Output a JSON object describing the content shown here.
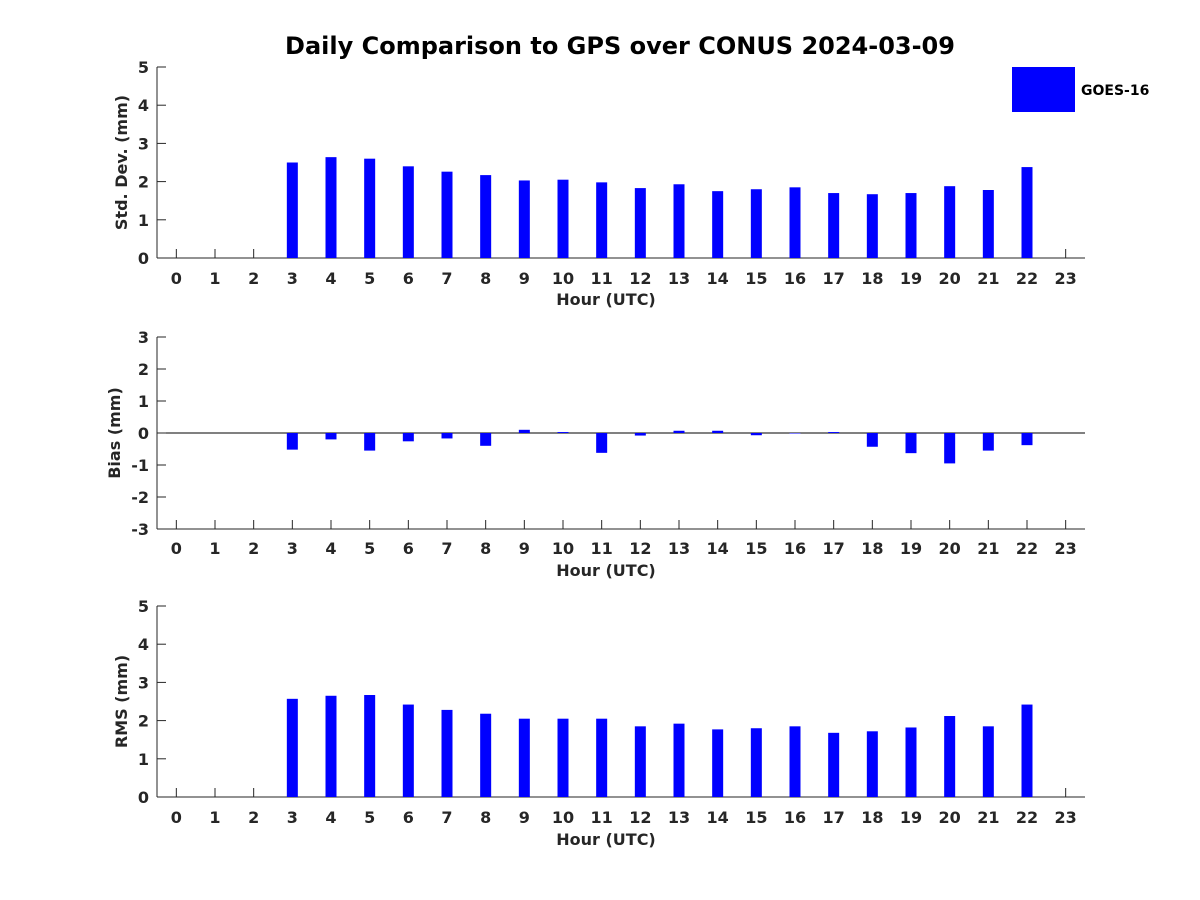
{
  "colors": {
    "bar": "#0000ff",
    "axis": "#262626",
    "background": "#ffffff"
  },
  "legend": {
    "label": "GOES-16",
    "location": "top-right"
  },
  "chart_data": [
    {
      "type": "bar",
      "title": "Daily Comparison to GPS over CONUS 2024-03-09",
      "xlabel": "Hour (UTC)",
      "ylabel": "Std. Dev. (mm)",
      "xlim": [
        -0.5,
        23.5
      ],
      "ylim": [
        0,
        5
      ],
      "yticks": [
        0,
        1,
        2,
        3,
        4,
        5
      ],
      "categories": [
        0,
        1,
        2,
        3,
        4,
        5,
        6,
        7,
        8,
        9,
        10,
        11,
        12,
        13,
        14,
        15,
        16,
        17,
        18,
        19,
        20,
        21,
        22,
        23
      ],
      "series": [
        {
          "name": "GOES-16",
          "values": [
            null,
            null,
            null,
            2.5,
            2.64,
            2.6,
            2.4,
            2.26,
            2.17,
            2.03,
            2.05,
            1.98,
            1.83,
            1.93,
            1.75,
            1.8,
            1.85,
            1.7,
            1.67,
            1.7,
            1.88,
            1.78,
            2.38,
            null
          ]
        }
      ]
    },
    {
      "type": "bar",
      "title": "",
      "xlabel": "Hour (UTC)",
      "ylabel": "Bias (mm)",
      "xlim": [
        -0.5,
        23.5
      ],
      "ylim": [
        -3,
        3
      ],
      "yticks": [
        -3,
        -2,
        -1,
        0,
        1,
        2,
        3
      ],
      "zero_line": true,
      "categories": [
        0,
        1,
        2,
        3,
        4,
        5,
        6,
        7,
        8,
        9,
        10,
        11,
        12,
        13,
        14,
        15,
        16,
        17,
        18,
        19,
        20,
        21,
        22,
        23
      ],
      "series": [
        {
          "name": "GOES-16",
          "values": [
            null,
            null,
            null,
            -0.52,
            -0.2,
            -0.55,
            -0.26,
            -0.17,
            -0.4,
            0.1,
            0.03,
            -0.62,
            -0.08,
            0.07,
            0.07,
            -0.07,
            0.0,
            0.03,
            -0.43,
            -0.63,
            -0.95,
            -0.55,
            -0.38,
            null
          ]
        }
      ]
    },
    {
      "type": "bar",
      "title": "",
      "xlabel": "Hour (UTC)",
      "ylabel": "RMS (mm)",
      "xlim": [
        -0.5,
        23.5
      ],
      "ylim": [
        0,
        5
      ],
      "yticks": [
        0,
        1,
        2,
        3,
        4,
        5
      ],
      "categories": [
        0,
        1,
        2,
        3,
        4,
        5,
        6,
        7,
        8,
        9,
        10,
        11,
        12,
        13,
        14,
        15,
        16,
        17,
        18,
        19,
        20,
        21,
        22,
        23
      ],
      "series": [
        {
          "name": "GOES-16",
          "values": [
            null,
            null,
            null,
            2.57,
            2.65,
            2.67,
            2.42,
            2.28,
            2.18,
            2.05,
            2.05,
            2.05,
            1.85,
            1.92,
            1.77,
            1.8,
            1.85,
            1.68,
            1.72,
            1.82,
            2.12,
            1.85,
            2.42,
            null
          ]
        }
      ]
    }
  ]
}
